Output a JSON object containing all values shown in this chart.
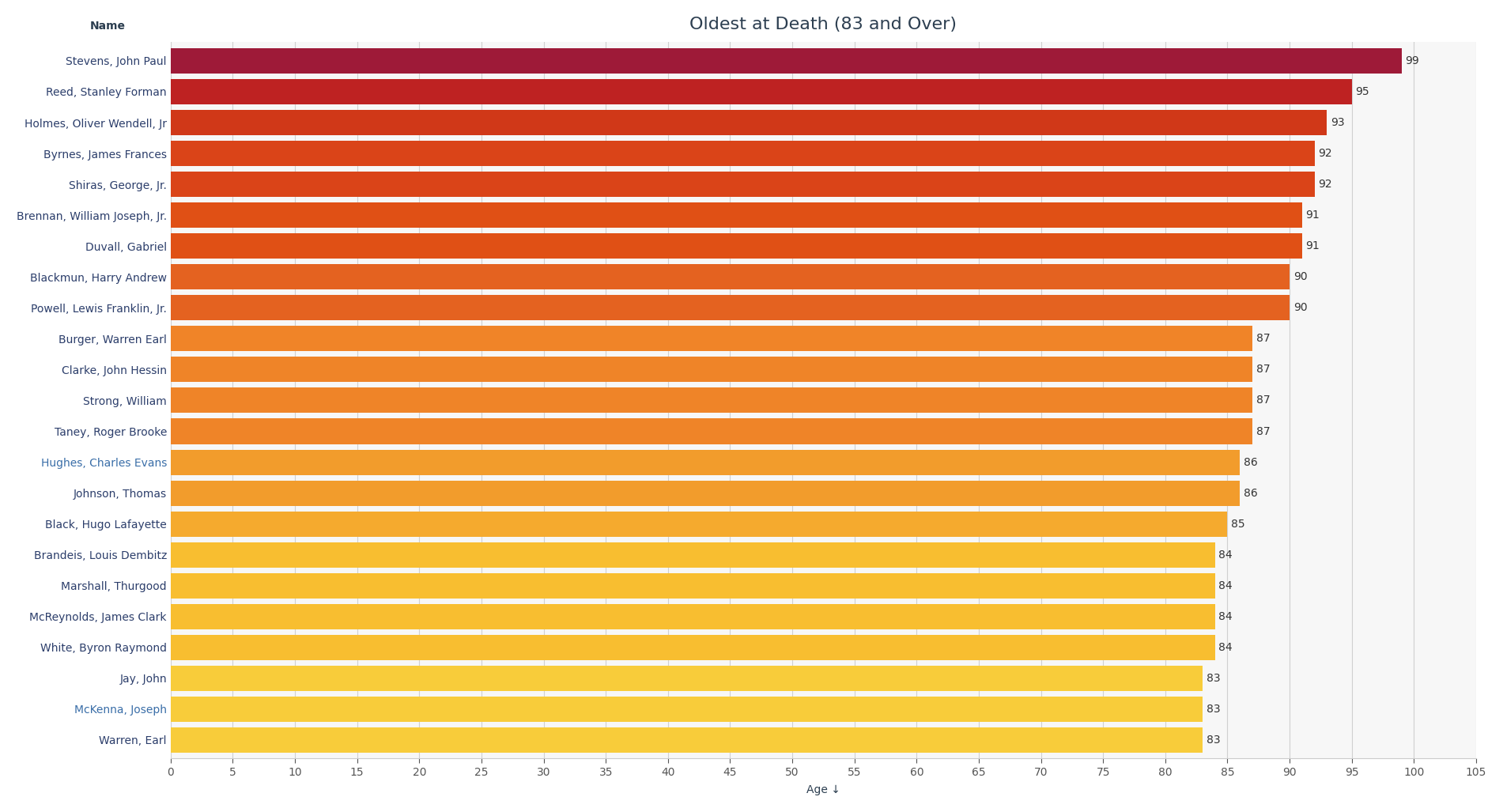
{
  "title": "Oldest at Death (83 and Over)",
  "xlabel": "Age ↓",
  "ylabel_label": "Name",
  "xlim": [
    0,
    105
  ],
  "xticks": [
    0,
    5,
    10,
    15,
    20,
    25,
    30,
    35,
    40,
    45,
    50,
    55,
    60,
    65,
    70,
    75,
    80,
    85,
    90,
    95,
    100,
    105
  ],
  "names": [
    "Stevens, John Paul",
    "Reed, Stanley Forman",
    "Holmes, Oliver Wendell, Jr",
    "Byrnes, James Frances",
    "Shiras, George, Jr.",
    "Brennan, William Joseph, Jr.",
    "Duvall, Gabriel",
    "Blackmun, Harry Andrew",
    "Powell, Lewis Franklin, Jr.",
    "Burger, Warren Earl",
    "Clarke, John Hessin",
    "Strong, William",
    "Taney, Roger Brooke",
    "Hughes, Charles Evans",
    "Johnson, Thomas",
    "Black, Hugo Lafayette",
    "Brandeis, Louis Dembitz",
    "Marshall, Thurgood",
    "McReynolds, James Clark",
    "White, Byron Raymond",
    "Jay, John",
    "McKenna, Joseph",
    "Warren, Earl"
  ],
  "values": [
    99,
    95,
    93,
    92,
    92,
    91,
    91,
    90,
    90,
    87,
    87,
    87,
    87,
    86,
    86,
    85,
    84,
    84,
    84,
    84,
    83,
    83,
    83
  ],
  "bar_colors": [
    "#9e1a38",
    "#be2222",
    "#d03818",
    "#da4418",
    "#da4418",
    "#e05015",
    "#e05015",
    "#e46220",
    "#e46220",
    "#f08428",
    "#ef8428",
    "#ef8428",
    "#ef8428",
    "#f29c2c",
    "#f29c2c",
    "#f5aa2e",
    "#f8be30",
    "#f8be30",
    "#f8be30",
    "#f8be30",
    "#f8cc3a",
    "#f8cc3a",
    "#f8cc3a"
  ],
  "name_colors": [
    "#2c3e6b",
    "#2c3e6b",
    "#2c3e6b",
    "#2c3e6b",
    "#2c3e6b",
    "#2c3e6b",
    "#2c3e6b",
    "#2c3e6b",
    "#2c3e6b",
    "#2c3e6b",
    "#2c3e6b",
    "#2c3e6b",
    "#2c3e6b",
    "#3a6ea8",
    "#2c3e6b",
    "#2c3e6b",
    "#2c3e6b",
    "#2c3e6b",
    "#2c3e6b",
    "#2c3e6b",
    "#2c3e6b",
    "#3a6ea8",
    "#2c3e6b"
  ],
  "background_color": "#ffffff",
  "plot_bg_color": "#f7f7f7",
  "title_fontsize": 16,
  "label_fontsize": 10,
  "tick_fontsize": 10,
  "bar_height": 0.82
}
